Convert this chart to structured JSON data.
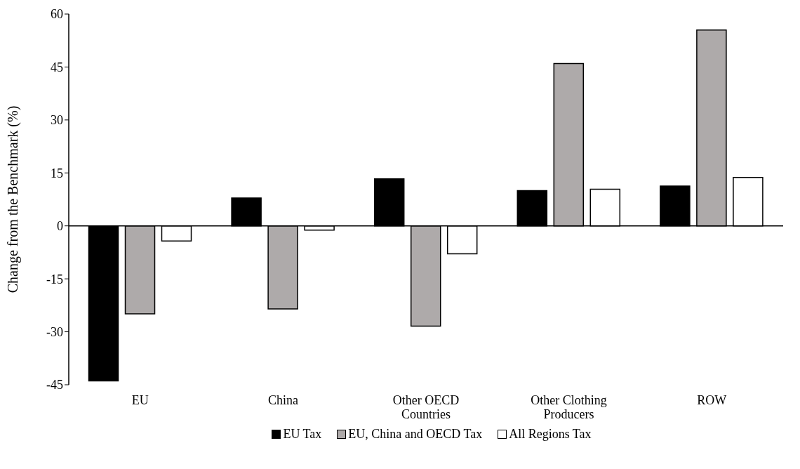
{
  "chart_data": {
    "type": "bar",
    "ylabel": "Change from the Benchmark (%)",
    "categories": [
      "EU",
      "China",
      "Other OECD Countries",
      "Other Clothing Producers",
      "ROW"
    ],
    "series": [
      {
        "name": "EU Tax",
        "color": "#000000",
        "values": [
          -43.9,
          7.9,
          13.3,
          10.0,
          11.3
        ]
      },
      {
        "name": "EU, China and OECD Tax",
        "color": "#aeaaaa",
        "values": [
          -24.9,
          -23.5,
          -28.4,
          46.0,
          55.5
        ]
      },
      {
        "name": "All Regions Tax",
        "color": "#ffffff",
        "values": [
          -4.3,
          -1.2,
          -7.9,
          10.4,
          13.7
        ]
      }
    ],
    "ylim": [
      -45,
      60
    ],
    "yticks": [
      -45,
      -30,
      -15,
      0,
      15,
      30,
      45,
      60
    ],
    "legend": "bottom"
  }
}
